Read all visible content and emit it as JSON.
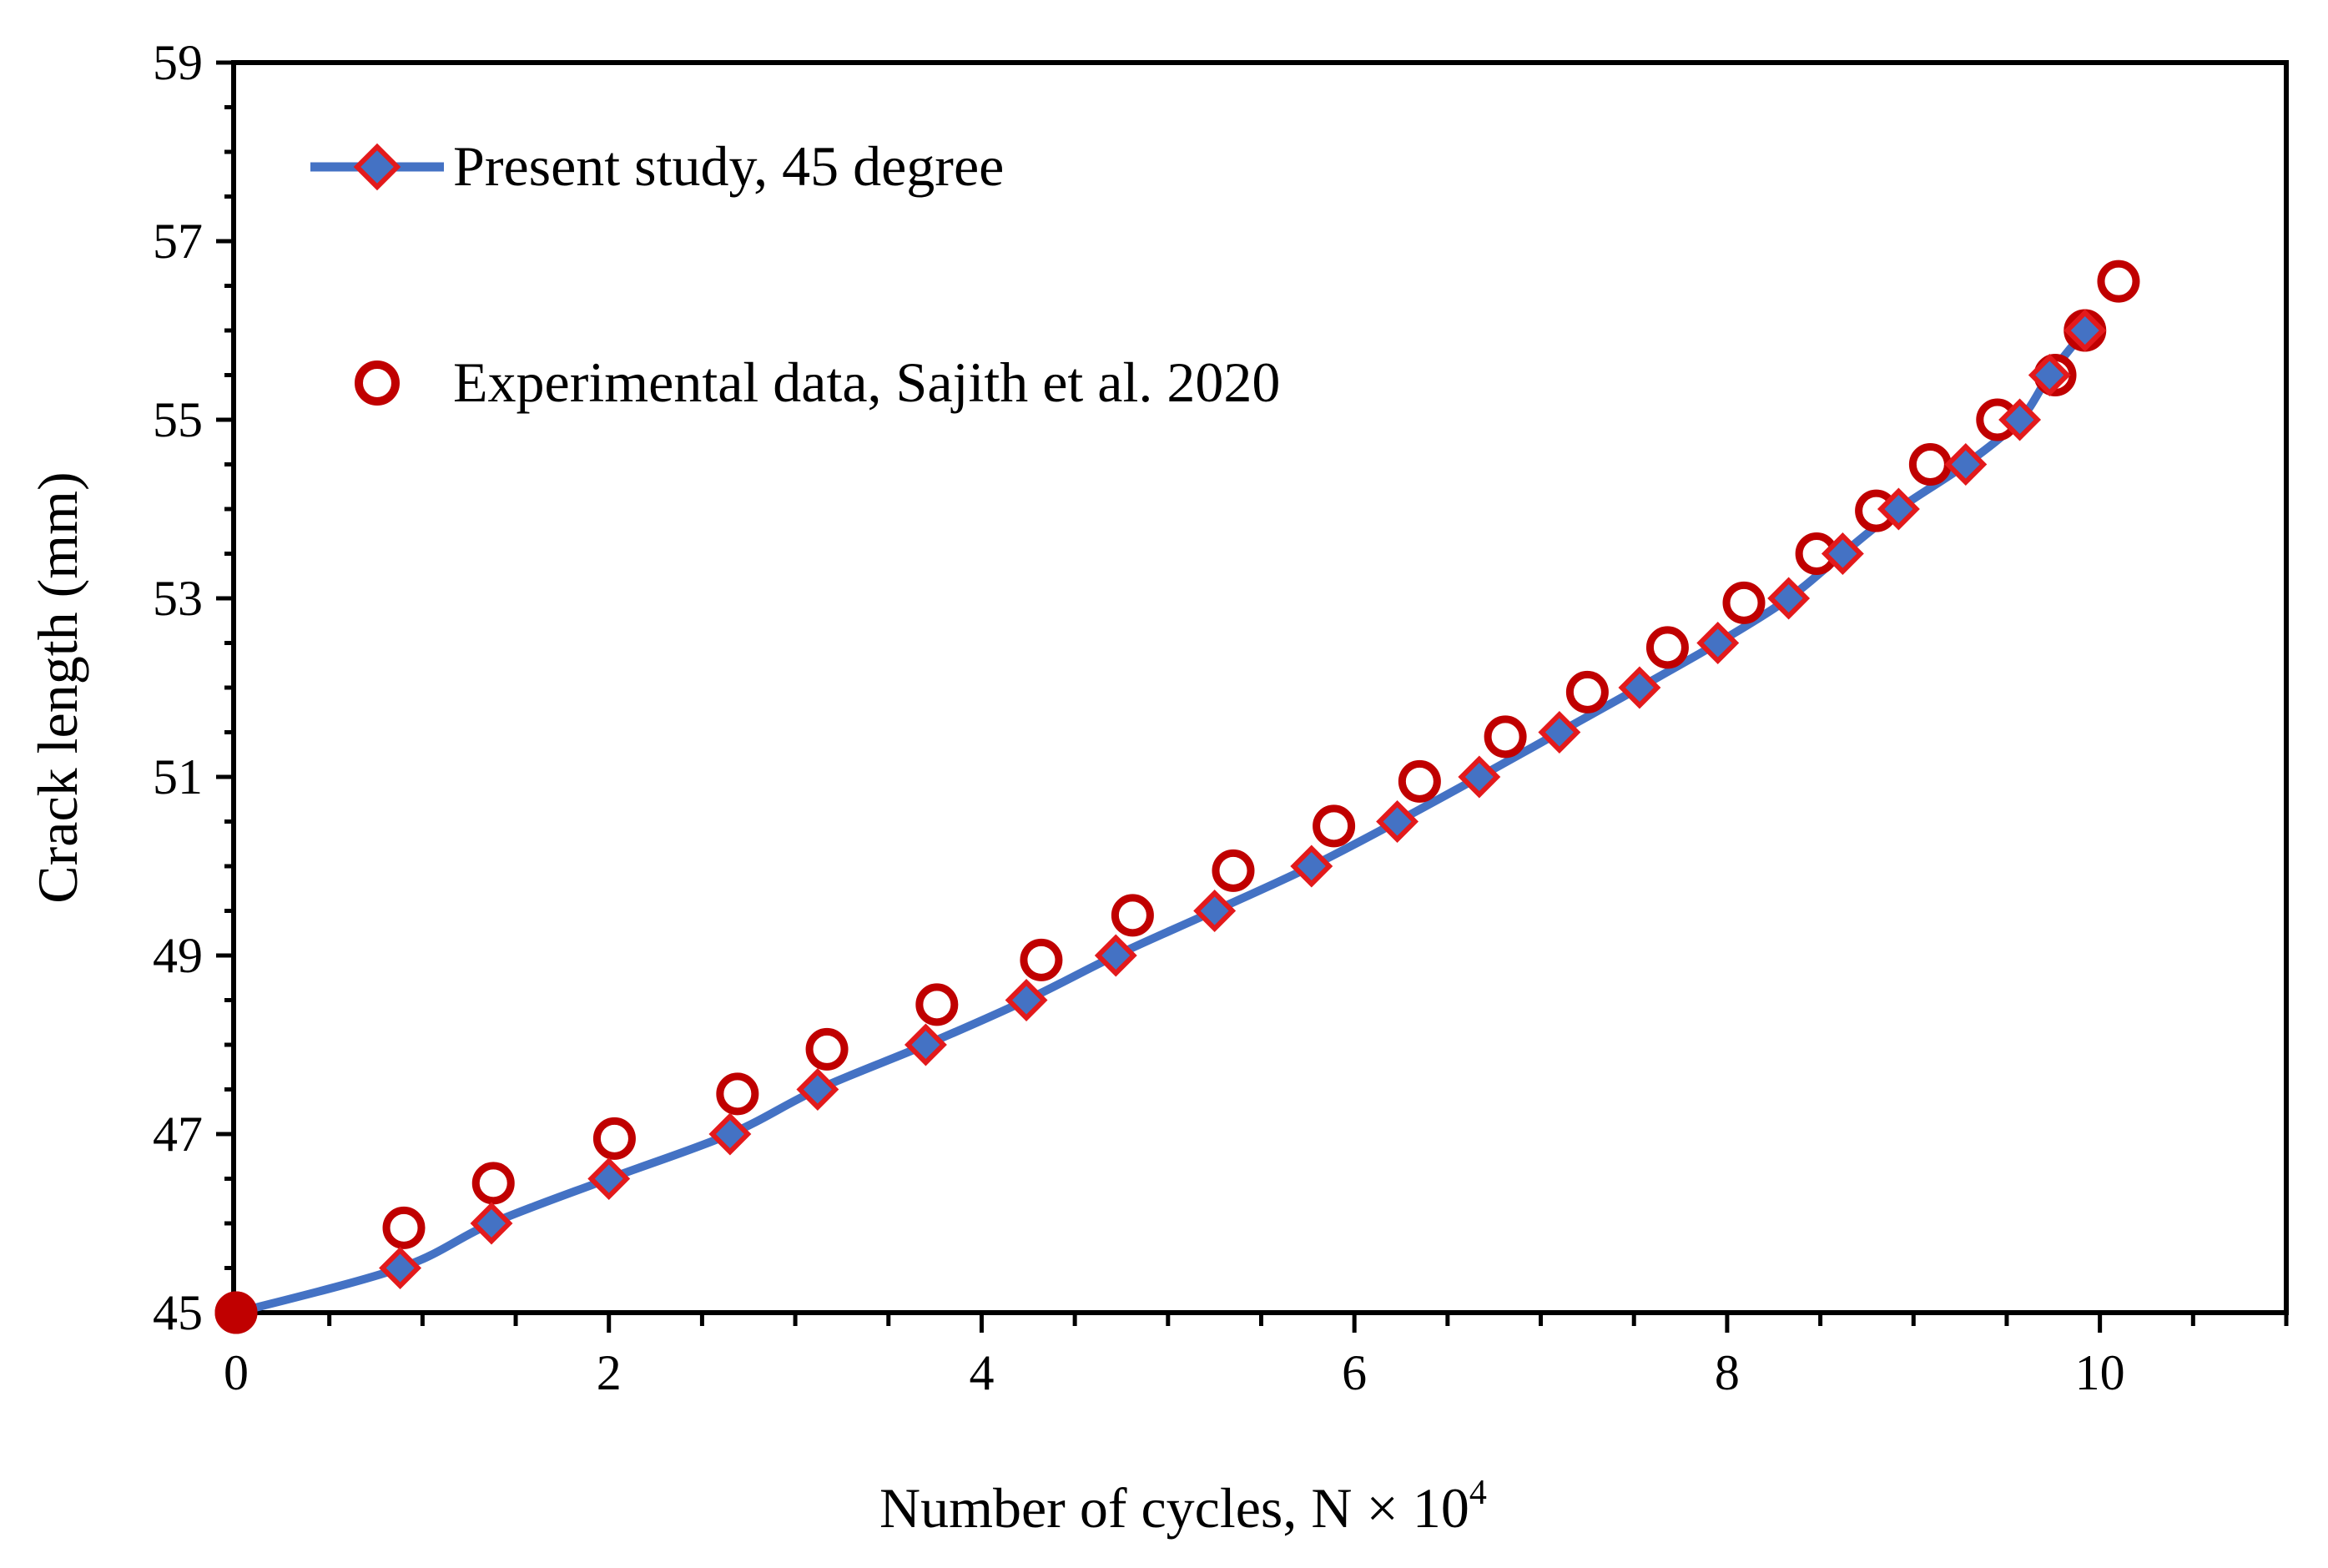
{
  "chart_data": {
    "type": "line",
    "title": "",
    "xlabel": "Number of cycles, N ×  10",
    "xlabel_superscript": "4",
    "ylabel": "Crack length (mm)",
    "xlim": [
      0,
      11
    ],
    "ylim": [
      45,
      59
    ],
    "x_ticks": [
      0,
      2,
      4,
      6,
      8,
      10
    ],
    "y_ticks": [
      45,
      47,
      49,
      51,
      53,
      55,
      57,
      59
    ],
    "legend_position": "top-left",
    "series": [
      {
        "name": "Present study, 45 degree",
        "kind": "line-with-diamonds",
        "line_color": "#4472C4",
        "marker_fill": "#4472C4",
        "marker_edge": "#E31A1C",
        "x": [
          0,
          0.88,
          1.37,
          2.0,
          2.65,
          3.12,
          3.7,
          4.24,
          4.72,
          5.25,
          5.77,
          6.23,
          6.67,
          7.1,
          7.53,
          7.95,
          8.33,
          8.62,
          8.92,
          9.28,
          9.57,
          9.73,
          9.92
        ],
        "y": [
          45,
          45.5,
          46,
          46.5,
          47,
          47.5,
          48,
          48.5,
          49,
          49.5,
          50,
          50.5,
          51,
          51.5,
          52,
          52.5,
          53,
          53.5,
          54,
          54.5,
          55,
          55.5,
          56
        ]
      },
      {
        "name": "Experimental data, Sajith et al. 2020",
        "kind": "open-circles",
        "marker_edge": "#C00000",
        "x": [
          0,
          0.9,
          1.38,
          2.03,
          2.69,
          3.17,
          3.76,
          4.32,
          4.81,
          5.35,
          5.89,
          6.35,
          6.81,
          7.25,
          7.68,
          8.09,
          8.48,
          8.8,
          9.09,
          9.45,
          9.76,
          9.92,
          10.1
        ],
        "y": [
          45,
          45.95,
          46.45,
          46.95,
          47.45,
          47.95,
          48.45,
          48.95,
          49.45,
          49.95,
          50.45,
          50.95,
          51.45,
          51.95,
          52.45,
          52.95,
          53.5,
          53.98,
          54.5,
          55.0,
          55.5,
          56.0,
          56.55
        ]
      }
    ]
  }
}
